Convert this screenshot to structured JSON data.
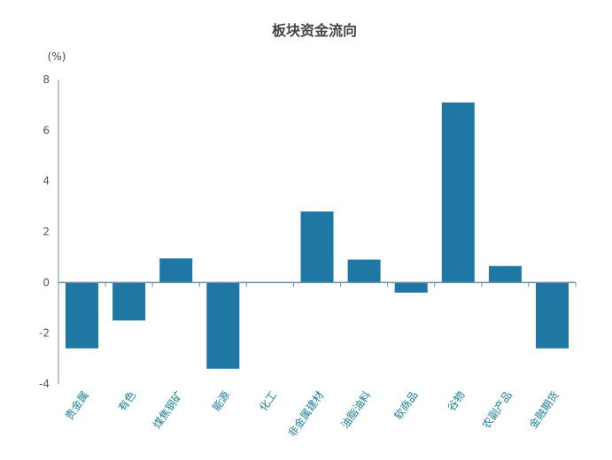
{
  "chart_data": {
    "type": "bar",
    "title": "板块资金流向",
    "ylabel": "(%)",
    "xlabel": "",
    "ylim": [
      -4,
      8
    ],
    "yticks": [
      8,
      6,
      4,
      2,
      0,
      -2,
      -4
    ],
    "categories": [
      "贵金属",
      "有色",
      "煤焦钢矿",
      "能源",
      "化工",
      "非金属建材",
      "油脂油料",
      "软商品",
      "谷物",
      "农副产品",
      "金融期货"
    ],
    "values": [
      -2.6,
      -1.5,
      0.95,
      -3.4,
      0.0,
      2.8,
      0.9,
      -0.4,
      7.1,
      0.65,
      -2.6
    ],
    "grid": false,
    "legend": "none",
    "colors": {
      "bar": "#1f77a3",
      "axis": "#6d8fa8",
      "label": "#1a7e99"
    }
  }
}
